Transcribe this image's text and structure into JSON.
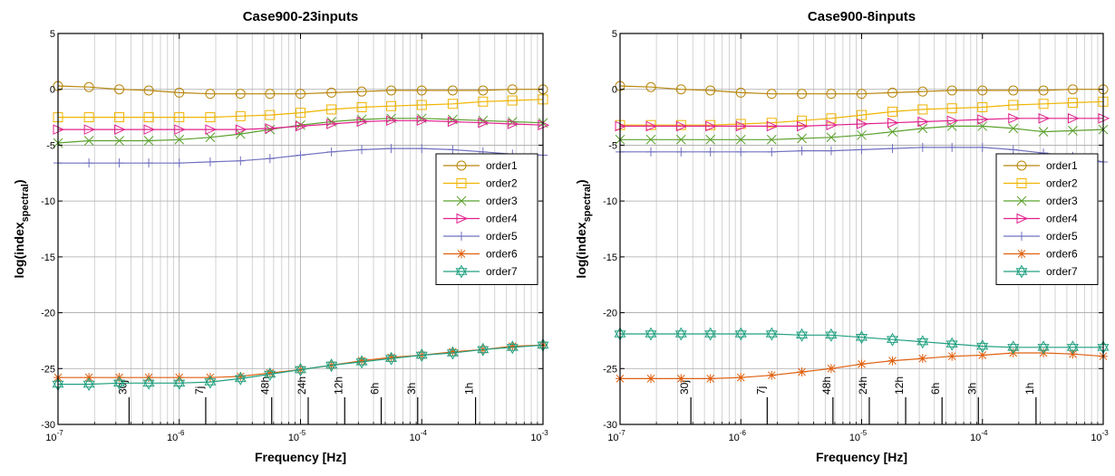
{
  "chart_data": [
    {
      "type": "line",
      "title": "Case900-23inputs",
      "xlabel": "Frequency [Hz]",
      "ylabel": "log(index",
      "ylabel_sub": "spectral",
      "ylabel_close": ")",
      "xscale": "log",
      "xlim": [
        1e-07,
        0.001
      ],
      "ylim": [
        -30,
        5
      ],
      "yticks": [
        5,
        0,
        -5,
        -10,
        -15,
        -20,
        -25,
        -30
      ],
      "xtick_base": "10",
      "xtick_exponents": [
        "-7",
        "-6",
        "-5",
        "-4",
        "-3"
      ],
      "grid": true,
      "legend_position": "right",
      "annotations": [
        {
          "label": "30j",
          "x": 3.858e-07
        },
        {
          "label": "7j",
          "x": 1.653e-06
        },
        {
          "label": "48h",
          "x": 5.787e-06
        },
        {
          "label": "24h",
          "x": 1.157e-05
        },
        {
          "label": "12h",
          "x": 2.315e-05
        },
        {
          "label": "6h",
          "x": 4.63e-05
        },
        {
          "label": "3h",
          "x": 9.259e-05
        },
        {
          "label": "1h",
          "x": 0.0002778
        }
      ],
      "x": [
        1e-07,
        1.8e-07,
        3.2e-07,
        5.6e-07,
        1e-06,
        1.8e-06,
        3.2e-06,
        5.6e-06,
        1e-05,
        1.8e-05,
        3.2e-05,
        5.6e-05,
        0.0001,
        0.00018,
        0.00032,
        0.00056,
        0.001
      ],
      "series": [
        {
          "name": "order1",
          "color": "#b8860b",
          "marker": "circle",
          "values": [
            0.3,
            0.2,
            0.0,
            -0.1,
            -0.3,
            -0.4,
            -0.4,
            -0.4,
            -0.4,
            -0.3,
            -0.2,
            -0.1,
            -0.1,
            -0.1,
            -0.1,
            0.0,
            0.0
          ]
        },
        {
          "name": "order2",
          "color": "#f0b400",
          "marker": "square",
          "values": [
            -2.5,
            -2.5,
            -2.5,
            -2.5,
            -2.5,
            -2.5,
            -2.4,
            -2.3,
            -2.1,
            -1.8,
            -1.6,
            -1.5,
            -1.4,
            -1.3,
            -1.1,
            -1.0,
            -0.9
          ]
        },
        {
          "name": "order3",
          "color": "#5aa02c",
          "marker": "x",
          "values": [
            -4.8,
            -4.6,
            -4.6,
            -4.6,
            -4.5,
            -4.3,
            -4.0,
            -3.6,
            -3.2,
            -2.9,
            -2.7,
            -2.6,
            -2.6,
            -2.7,
            -2.8,
            -2.9,
            -3.0
          ]
        },
        {
          "name": "order4",
          "color": "#e0208c",
          "marker": "triangle-right",
          "values": [
            -3.6,
            -3.6,
            -3.6,
            -3.6,
            -3.6,
            -3.6,
            -3.6,
            -3.5,
            -3.3,
            -3.1,
            -2.9,
            -2.8,
            -2.8,
            -2.9,
            -3.0,
            -3.1,
            -3.2
          ]
        },
        {
          "name": "order5",
          "color": "#7070c0",
          "marker": "plus",
          "values": [
            -6.6,
            -6.6,
            -6.6,
            -6.6,
            -6.6,
            -6.5,
            -6.4,
            -6.2,
            -5.9,
            -5.6,
            -5.4,
            -5.3,
            -5.3,
            -5.4,
            -5.6,
            -5.8,
            -5.9
          ]
        },
        {
          "name": "order6",
          "color": "#e06010",
          "marker": "star",
          "values": [
            -25.8,
            -25.8,
            -25.8,
            -25.8,
            -25.8,
            -25.8,
            -25.7,
            -25.4,
            -25.1,
            -24.7,
            -24.3,
            -24.0,
            -23.8,
            -23.5,
            -23.3,
            -23.0,
            -22.9
          ]
        },
        {
          "name": "order7",
          "color": "#20a080",
          "marker": "hexagram",
          "values": [
            -26.4,
            -26.4,
            -26.3,
            -26.3,
            -26.3,
            -26.2,
            -25.9,
            -25.5,
            -25.1,
            -24.7,
            -24.4,
            -24.1,
            -23.8,
            -23.6,
            -23.3,
            -23.1,
            -22.9
          ]
        }
      ]
    },
    {
      "type": "line",
      "title": "Case900-8inputs",
      "xlabel": "Frequency [Hz]",
      "ylabel": "log(index",
      "ylabel_sub": "spectral",
      "ylabel_close": ")",
      "xscale": "log",
      "xlim": [
        1e-07,
        0.001
      ],
      "ylim": [
        -30,
        5
      ],
      "yticks": [
        5,
        0,
        -5,
        -10,
        -15,
        -20,
        -25,
        -30
      ],
      "xtick_base": "10",
      "xtick_exponents": [
        "-7",
        "-6",
        "-5",
        "-4",
        "-3"
      ],
      "grid": true,
      "legend_position": "right",
      "annotations": [
        {
          "label": "30j",
          "x": 3.858e-07
        },
        {
          "label": "7j",
          "x": 1.653e-06
        },
        {
          "label": "48h",
          "x": 5.787e-06
        },
        {
          "label": "24h",
          "x": 1.157e-05
        },
        {
          "label": "12h",
          "x": 2.315e-05
        },
        {
          "label": "6h",
          "x": 4.63e-05
        },
        {
          "label": "3h",
          "x": 9.259e-05
        },
        {
          "label": "1h",
          "x": 0.0002778
        }
      ],
      "x": [
        1e-07,
        1.8e-07,
        3.2e-07,
        5.6e-07,
        1e-06,
        1.8e-06,
        3.2e-06,
        5.6e-06,
        1e-05,
        1.8e-05,
        3.2e-05,
        5.6e-05,
        0.0001,
        0.00018,
        0.00032,
        0.00056,
        0.001
      ],
      "series": [
        {
          "name": "order1",
          "color": "#b8860b",
          "marker": "circle",
          "values": [
            0.3,
            0.2,
            0.0,
            -0.1,
            -0.3,
            -0.4,
            -0.4,
            -0.4,
            -0.4,
            -0.3,
            -0.2,
            -0.1,
            -0.1,
            -0.1,
            -0.1,
            0.0,
            0.0
          ]
        },
        {
          "name": "order2",
          "color": "#f0b400",
          "marker": "square",
          "values": [
            -3.2,
            -3.2,
            -3.2,
            -3.2,
            -3.1,
            -3.0,
            -2.8,
            -2.6,
            -2.3,
            -2.0,
            -1.8,
            -1.7,
            -1.6,
            -1.4,
            -1.3,
            -1.2,
            -1.1
          ]
        },
        {
          "name": "order3",
          "color": "#5aa02c",
          "marker": "x",
          "values": [
            -4.5,
            -4.5,
            -4.5,
            -4.5,
            -4.5,
            -4.5,
            -4.4,
            -4.3,
            -4.1,
            -3.8,
            -3.5,
            -3.3,
            -3.3,
            -3.5,
            -3.8,
            -3.7,
            -3.6
          ]
        },
        {
          "name": "order4",
          "color": "#e0208c",
          "marker": "triangle-right",
          "values": [
            -3.3,
            -3.3,
            -3.3,
            -3.3,
            -3.3,
            -3.3,
            -3.3,
            -3.2,
            -3.1,
            -3.0,
            -2.9,
            -2.8,
            -2.7,
            -2.6,
            -2.6,
            -2.6,
            -2.6
          ]
        },
        {
          "name": "order5",
          "color": "#7070c0",
          "marker": "plus",
          "values": [
            -5.6,
            -5.6,
            -5.6,
            -5.6,
            -5.6,
            -5.6,
            -5.5,
            -5.5,
            -5.4,
            -5.3,
            -5.2,
            -5.2,
            -5.2,
            -5.4,
            -5.7,
            -6.0,
            -6.5
          ]
        },
        {
          "name": "order6",
          "color": "#e06010",
          "marker": "star",
          "values": [
            -25.9,
            -25.9,
            -25.9,
            -25.9,
            -25.8,
            -25.6,
            -25.3,
            -25.0,
            -24.6,
            -24.3,
            -24.1,
            -23.9,
            -23.8,
            -23.6,
            -23.6,
            -23.7,
            -23.9
          ]
        },
        {
          "name": "order7",
          "color": "#20a080",
          "marker": "hexagram",
          "values": [
            -21.9,
            -21.9,
            -21.9,
            -21.9,
            -21.9,
            -21.9,
            -22.0,
            -22.0,
            -22.2,
            -22.4,
            -22.6,
            -22.8,
            -23.0,
            -23.1,
            -23.1,
            -23.1,
            -23.1
          ]
        }
      ]
    }
  ]
}
